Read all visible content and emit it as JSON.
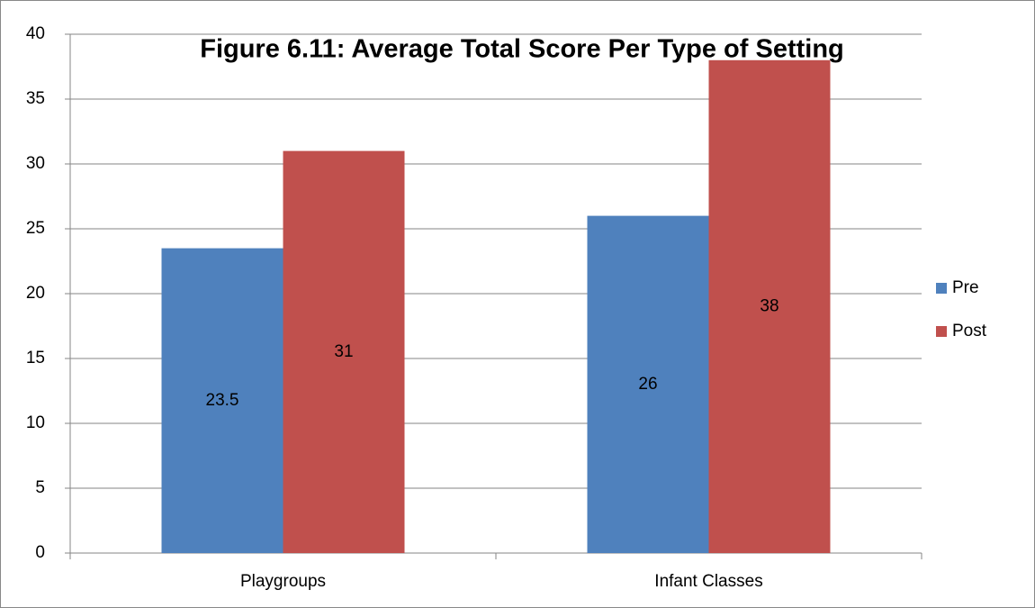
{
  "chart_data": {
    "type": "bar",
    "title": "Figure 6.11: Average Total Score Per Type of Setting",
    "categories": [
      "Playgroups",
      "Infant Classes"
    ],
    "series": [
      {
        "name": "Pre",
        "color": "#4f81bd",
        "values": [
          23.5,
          26
        ]
      },
      {
        "name": "Post",
        "color": "#c0504d",
        "values": [
          31,
          38
        ]
      }
    ],
    "ylim": [
      0,
      40
    ],
    "yticks": [
      0,
      5,
      10,
      15,
      20,
      25,
      30,
      35,
      40
    ],
    "grid": true,
    "legend": "right"
  }
}
